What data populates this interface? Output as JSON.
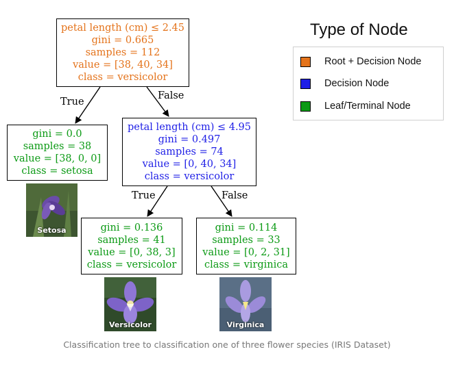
{
  "nodes": {
    "root": {
      "lines": [
        "petal length (cm) ≤ 2.45",
        "gini = 0.665",
        "samples = 112",
        "value = [38, 40, 34]",
        "class = versicolor"
      ]
    },
    "setosa": {
      "lines": [
        "gini = 0.0",
        "samples = 38",
        "value = [38, 0, 0]",
        "class = setosa"
      ]
    },
    "decision": {
      "lines": [
        "petal length (cm) ≤ 4.95",
        "gini = 0.497",
        "samples = 74",
        "value = [0, 40, 34]",
        "class = versicolor"
      ]
    },
    "versicolor": {
      "lines": [
        "gini = 0.136",
        "samples = 41",
        "value = [0, 38, 3]",
        "class = versicolor"
      ]
    },
    "virginica": {
      "lines": [
        "gini = 0.114",
        "samples = 33",
        "value = [0, 2, 31]",
        "class = virginica"
      ]
    }
  },
  "edges": {
    "root_left": "True",
    "root_right": "False",
    "dec_left": "True",
    "dec_right": "False"
  },
  "images": {
    "setosa": "Setosa",
    "versicolor": "Versicolor",
    "virginica": "Virginica"
  },
  "legend": {
    "title": "Type of Node",
    "items": [
      {
        "label": "Root + Decision Node",
        "color": "#e4731b"
      },
      {
        "label": "Decision Node",
        "color": "#1f1fe6"
      },
      {
        "label": "Leaf/Terminal Node",
        "color": "#0c9a15"
      }
    ]
  },
  "caption": "Classification tree to classification one of three flower species (IRIS Dataset)"
}
